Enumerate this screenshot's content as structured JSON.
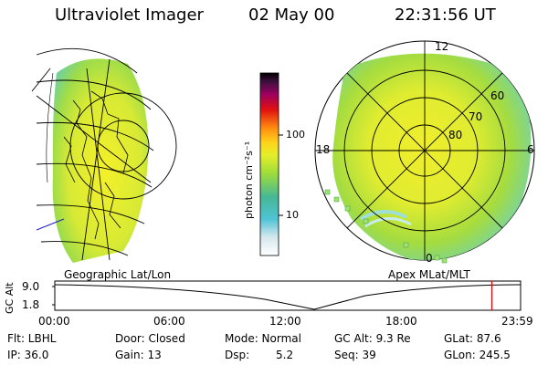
{
  "header": {
    "instrument": "Ultraviolet Imager",
    "date": "02 May 00",
    "time": "22:31:56 UT"
  },
  "colorbar": {
    "unit_label": "photon cm⁻²s⁻¹",
    "ticks": [
      "100",
      "10"
    ]
  },
  "left_panel": {
    "caption": "Geographic Lat/Lon"
  },
  "right_panel": {
    "caption": "Apex MLat/MLT",
    "mlt_labels": {
      "noon": "12",
      "dusk": "18",
      "dawn": "6",
      "midnight": "0"
    },
    "lat_labels": [
      "60",
      "70",
      "80"
    ]
  },
  "altitude_plot": {
    "ylabel": "GC Alt",
    "yticks": [
      "9.0",
      "1.8"
    ],
    "xticks": [
      "00:00",
      "06:00",
      "12:00",
      "18:00",
      "23:59"
    ],
    "marker_time_fraction": 0.9383
  },
  "status": {
    "filter": "Flt: LBHL",
    "ip": "IP: 36.0",
    "door": "Door: Closed",
    "gain": "Gain: 13",
    "mode": "Mode: Normal",
    "dsp_label": "Dsp:",
    "dsp_value": "5.2",
    "gc_alt": "GC Alt: 9.3 Re",
    "seq": "Seq: 39",
    "glat": "GLat: 87.6",
    "glon": "GLon: 245.5"
  },
  "colors": {
    "aurora_high": "#f2ee2e",
    "aurora_mid": "#b4e23a",
    "aurora_low": "#8ed85a",
    "aurora_edge": "#6fd4b0",
    "marker_line": "#e00000"
  }
}
